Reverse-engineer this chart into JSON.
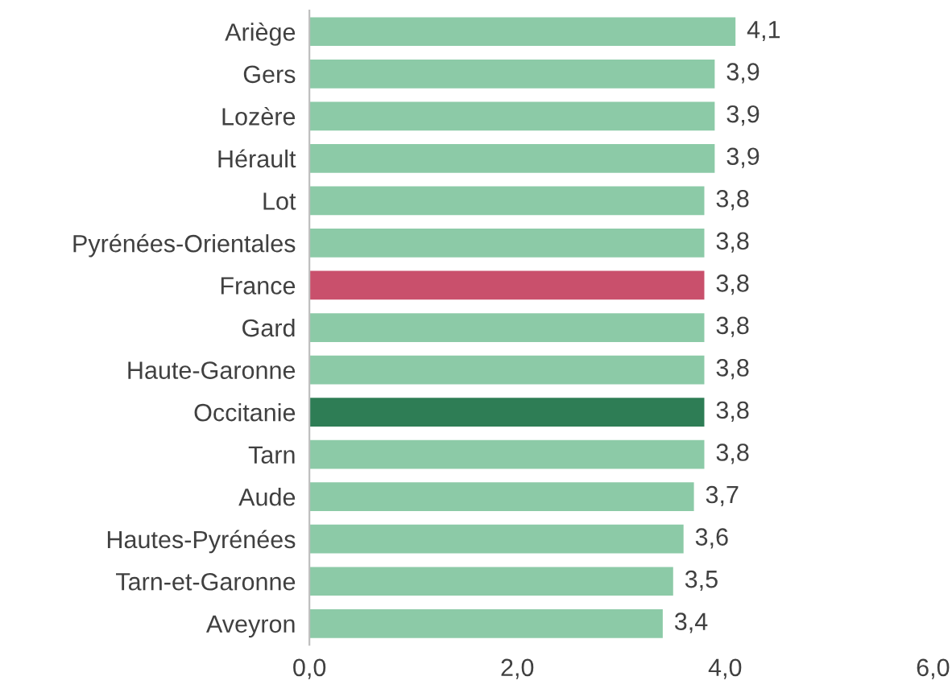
{
  "chart_data": {
    "type": "bar",
    "orientation": "horizontal",
    "categories": [
      "Ariège",
      "Gers",
      "Lozère",
      "Hérault",
      "Lot",
      "Pyrénées-Orientales",
      "France",
      "Gard",
      "Haute-Garonne",
      "Occitanie",
      "Tarn",
      "Aude",
      "Hautes-Pyrénées",
      "Tarn-et-Garonne",
      "Aveyron"
    ],
    "values": [
      4.1,
      3.9,
      3.9,
      3.9,
      3.8,
      3.8,
      3.8,
      3.8,
      3.8,
      3.8,
      3.8,
      3.7,
      3.6,
      3.5,
      3.4
    ],
    "colors": [
      "#8ccaa7",
      "#8ccaa7",
      "#8ccaa7",
      "#8ccaa7",
      "#8ccaa7",
      "#8ccaa7",
      "#c9506c",
      "#8ccaa7",
      "#8ccaa7",
      "#2e7d55",
      "#8ccaa7",
      "#8ccaa7",
      "#8ccaa7",
      "#8ccaa7",
      "#8ccaa7"
    ],
    "value_labels": [
      "4,1",
      "3,9",
      "3,9",
      "3,9",
      "3,8",
      "3,8",
      "3,8",
      "3,8",
      "3,8",
      "3,8",
      "3,8",
      "3,7",
      "3,6",
      "3,5",
      "3,4"
    ],
    "xlim": [
      0,
      6
    ],
    "xticks": [
      {
        "value": 0,
        "label": "0,0"
      },
      {
        "value": 2,
        "label": "2,0"
      },
      {
        "value": 4,
        "label": "4,0"
      },
      {
        "value": 6,
        "label": "6,0"
      }
    ],
    "grid": false,
    "legend": false
  }
}
